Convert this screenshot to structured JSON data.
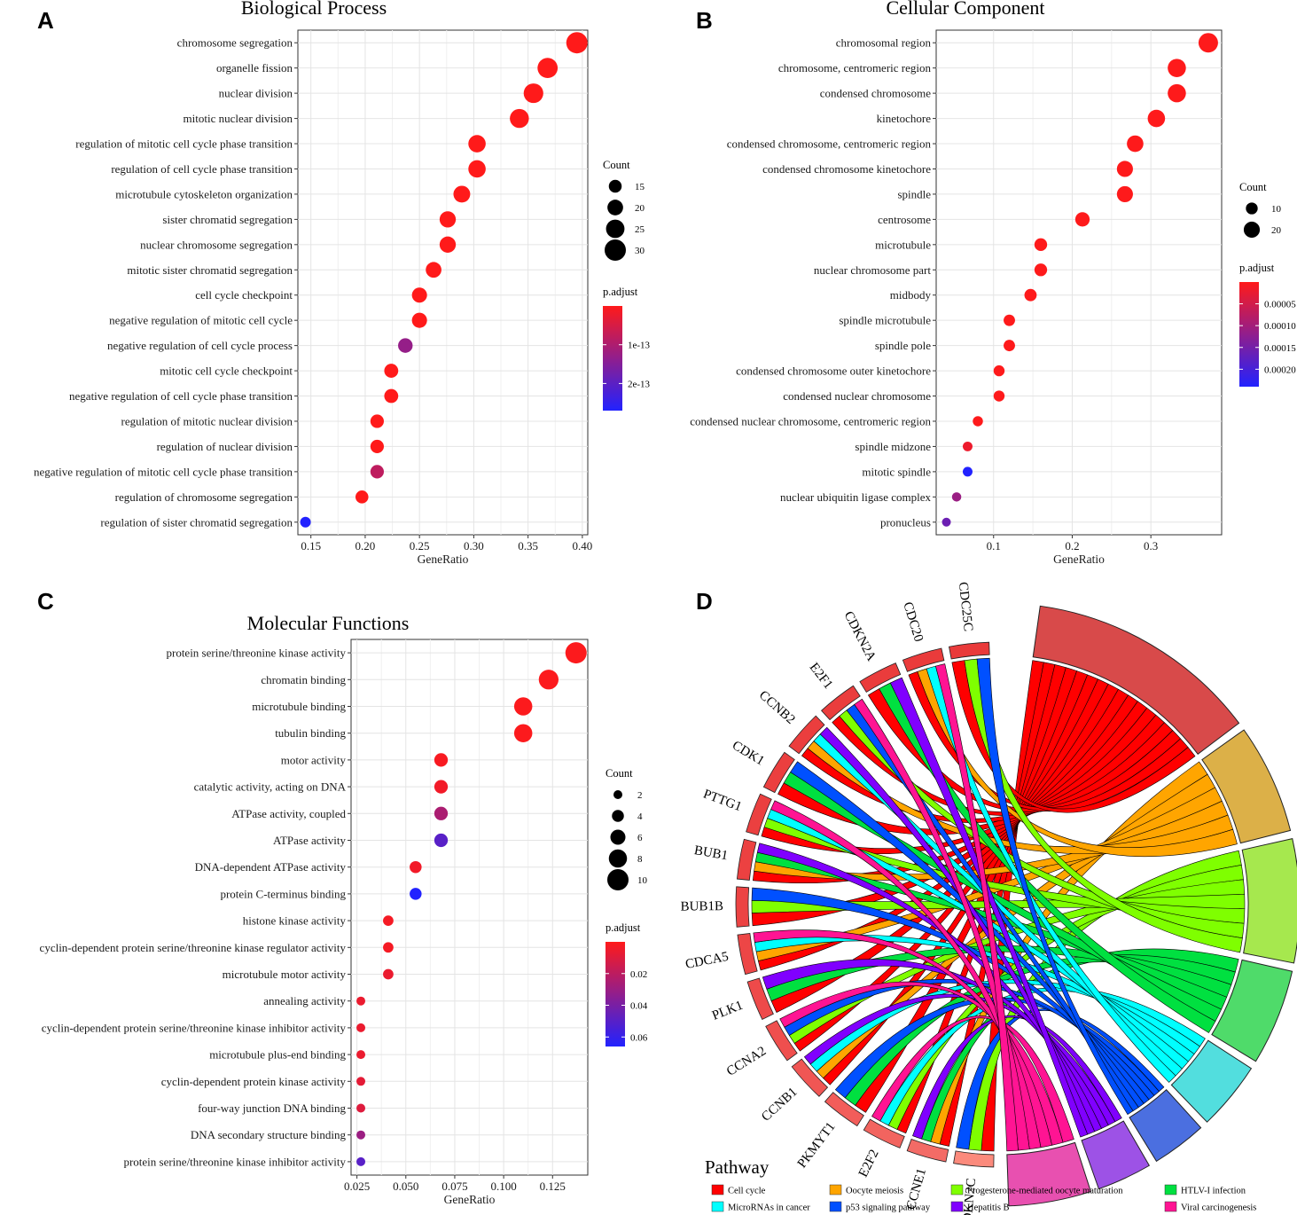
{
  "figure": {
    "panels": [
      "A",
      "B",
      "C",
      "D"
    ]
  },
  "chart_data": [
    {
      "panel": "A",
      "type": "scatter",
      "title": "Biological Process",
      "xlabel": "GeneRatio",
      "ylabel": "",
      "xlim": [
        0.138,
        0.405
      ],
      "xticks": [
        0.15,
        0.2,
        0.25,
        0.3,
        0.35,
        0.4
      ],
      "xtick_labels": [
        "0.15",
        "0.20",
        "0.25",
        "0.30",
        "0.35",
        "0.40"
      ],
      "categories": [
        "chromosome segregation",
        "organelle fission",
        "nuclear division",
        "mitotic nuclear division",
        "regulation of mitotic cell cycle phase transition",
        "regulation of cell cycle phase transition",
        "microtubule cytoskeleton organization",
        "sister chromatid segregation",
        "nuclear chromosome segregation",
        "mitotic sister chromatid segregation",
        "cell cycle checkpoint",
        "negative regulation of mitotic cell cycle",
        "negative regulation of cell cycle process",
        "mitotic cell cycle checkpoint",
        "negative regulation of cell cycle phase transition",
        "regulation of mitotic nuclear division",
        "regulation of nuclear division",
        "negative regulation of mitotic cell cycle phase transition",
        "regulation of chromosome segregation",
        "regulation of sister chromatid segregation"
      ],
      "gene_ratio": [
        0.395,
        0.368,
        0.355,
        0.342,
        0.303,
        0.303,
        0.289,
        0.276,
        0.276,
        0.263,
        0.25,
        0.25,
        0.237,
        0.224,
        0.224,
        0.211,
        0.211,
        0.211,
        0.197,
        0.145
      ],
      "count": [
        30,
        28,
        27,
        26,
        23,
        23,
        22,
        21,
        21,
        20,
        19,
        19,
        18,
        17,
        17,
        16,
        16,
        16,
        15,
        11
      ],
      "p_adjust": [
        1e-16,
        1e-16,
        1e-16,
        1e-16,
        1e-16,
        1e-16,
        1e-16,
        1e-16,
        1e-16,
        1e-16,
        1e-16,
        1e-16,
        1.3e-13,
        1e-16,
        1e-16,
        1e-16,
        1e-16,
        8e-14,
        1e-16,
        2.7e-13
      ],
      "legend": {
        "size_title": "Count",
        "size_values": [
          15,
          20,
          25,
          30
        ],
        "size_labels": [
          "15",
          "20",
          "25",
          "30"
        ],
        "color_title": "p.adjust",
        "color_ticks": [
          1e-13,
          2e-13
        ],
        "color_labels": [
          "1e-13",
          "2e-13"
        ],
        "color_range": [
          0,
          2.7e-13
        ],
        "color_low": "#ff1a1a",
        "color_high": "#2222ff"
      }
    },
    {
      "panel": "B",
      "type": "scatter",
      "title": "Cellular Component",
      "xlabel": "GeneRatio",
      "ylabel": "",
      "xlim": [
        0.027,
        0.39
      ],
      "xticks": [
        0.1,
        0.2,
        0.3
      ],
      "xtick_labels": [
        "0.1",
        "0.2",
        "0.3"
      ],
      "categories": [
        "chromosomal region",
        "chromosome, centromeric region",
        "condensed chromosome",
        "kinetochore",
        "condensed chromosome, centromeric region",
        "condensed chromosome kinetochore",
        "spindle",
        "centrosome",
        "microtubule",
        "nuclear chromosome part",
        "midbody",
        "spindle microtubule",
        "spindle pole",
        "condensed chromosome outer kinetochore",
        "condensed nuclear chromosome",
        "condensed nuclear chromosome, centromeric region",
        "spindle midzone",
        "mitotic spindle",
        "nuclear ubiquitin ligase complex",
        "pronucleus"
      ],
      "gene_ratio": [
        0.373,
        0.333,
        0.333,
        0.307,
        0.28,
        0.267,
        0.267,
        0.213,
        0.16,
        0.16,
        0.147,
        0.12,
        0.12,
        0.107,
        0.107,
        0.08,
        0.067,
        0.067,
        0.053,
        0.04
      ],
      "count": [
        28,
        25,
        25,
        23,
        21,
        20,
        20,
        16,
        12,
        12,
        11,
        9,
        9,
        8,
        8,
        6,
        5,
        5,
        4,
        3
      ],
      "p_adjust": [
        1e-06,
        1e-06,
        1e-06,
        1e-06,
        1e-06,
        1e-06,
        1e-06,
        1e-06,
        1e-06,
        1e-06,
        1e-06,
        1e-06,
        1e-06,
        1e-06,
        1e-06,
        1e-06,
        2e-05,
        0.00024,
        0.00011,
        0.00016
      ],
      "legend": {
        "size_title": "Count",
        "size_values": [
          10,
          20
        ],
        "size_labels": [
          "10",
          "20"
        ],
        "color_title": "p.adjust",
        "color_ticks": [
          5e-05,
          0.0001,
          0.00015,
          0.0002
        ],
        "color_labels": [
          "0.00005",
          "0.00010",
          "0.00015",
          "0.00020"
        ],
        "color_range": [
          0,
          0.00024
        ],
        "color_low": "#ff1a1a",
        "color_high": "#2222ff"
      }
    },
    {
      "panel": "C",
      "type": "scatter",
      "title": "Molecular Functions",
      "xlabel": "GeneRatio",
      "ylabel": "",
      "xlim": [
        0.022,
        0.143
      ],
      "xticks": [
        0.025,
        0.05,
        0.075,
        0.1,
        0.125
      ],
      "xtick_labels": [
        "0.025",
        "0.050",
        "0.075",
        "0.100",
        "0.125"
      ],
      "categories": [
        "protein serine/threonine kinase activity",
        "chromatin binding",
        "microtubule binding",
        "tubulin binding",
        "motor activity",
        "catalytic activity, acting on DNA",
        "ATPase activity, coupled",
        "ATPase activity",
        "DNA-dependent ATPase activity",
        "protein C-terminus binding",
        "histone kinase activity",
        "cyclin-dependent protein serine/threonine kinase regulator activity",
        "microtubule motor activity",
        "annealing activity",
        "cyclin-dependent protein serine/threonine kinase inhibitor activity",
        "microtubule plus-end binding",
        "cyclin-dependent protein kinase activity",
        "four-way junction DNA binding",
        "DNA secondary structure binding",
        "protein serine/threonine kinase inhibitor activity"
      ],
      "gene_ratio": [
        0.137,
        0.123,
        0.11,
        0.11,
        0.068,
        0.068,
        0.068,
        0.068,
        0.055,
        0.055,
        0.041,
        0.041,
        0.041,
        0.027,
        0.027,
        0.027,
        0.027,
        0.027,
        0.027,
        0.027
      ],
      "count": [
        10,
        9,
        8,
        8,
        5,
        5,
        5,
        5,
        4,
        4,
        3,
        3,
        3,
        2,
        2,
        2,
        2,
        2,
        2,
        2
      ],
      "p_adjust": [
        0.001,
        0.001,
        0.001,
        0.001,
        0.002,
        0.004,
        0.025,
        0.05,
        0.004,
        0.066,
        0.003,
        0.003,
        0.006,
        0.006,
        0.006,
        0.006,
        0.008,
        0.01,
        0.03,
        0.05
      ],
      "legend": {
        "size_title": "Count",
        "size_values": [
          2,
          4,
          6,
          8,
          10
        ],
        "size_labels": [
          "2",
          "4",
          "6",
          "8",
          "10"
        ],
        "color_title": "p.adjust",
        "color_ticks": [
          0.02,
          0.04,
          0.06
        ],
        "color_labels": [
          "0.02",
          "0.04",
          "0.06"
        ],
        "color_range": [
          0,
          0.066
        ],
        "color_low": "#ff1a1a",
        "color_high": "#2222ff"
      }
    },
    {
      "panel": "D",
      "type": "chord",
      "title": "",
      "genes": [
        "CDKN2C",
        "CCNE1",
        "E2F2",
        "PKMYT1",
        "CCNB1",
        "CCNA2",
        "PLK1",
        "CDCA5",
        "BUB1B",
        "BUB1",
        "PTTG1",
        "CDK1",
        "CCNB2",
        "E2F1",
        "CDKN2A",
        "CDC20",
        "CDC25C"
      ],
      "gene_colors": [
        "#fb8a7c",
        "#f36b66",
        "#f2645f",
        "#f25d5a",
        "#f05654",
        "#ef4f4e",
        "#ee4a4a",
        "#ed4646",
        "#ec4343",
        "#ec4141",
        "#eb4040",
        "#eb3f3f",
        "#eb3e3e",
        "#ea3d3d",
        "#ea3c3c",
        "#ea3b3b",
        "#e93a3a"
      ],
      "pathways": [
        {
          "name": "Cell cycle",
          "color": "#ff0000",
          "block_color": "#d84a4a",
          "count": 17
        },
        {
          "name": "Oocyte meiosis",
          "color": "#ffa500",
          "block_color": "#dcb048",
          "count": 8
        },
        {
          "name": "Progesterone-mediated oocyte maturation",
          "color": "#7fff00",
          "block_color": "#a6e84e",
          "count": 9
        },
        {
          "name": "HTLV-I infection",
          "color": "#00e040",
          "block_color": "#4fdb6a",
          "count": 7
        },
        {
          "name": "MicroRNAs in cancer",
          "color": "#00ffff",
          "block_color": "#52dede",
          "count": 5
        },
        {
          "name": "p53 signaling pathway",
          "color": "#0050ff",
          "block_color": "#4b6fe0",
          "count": 4
        },
        {
          "name": "Hepatitis B",
          "color": "#8000ff",
          "block_color": "#9d52e6",
          "count": 4
        },
        {
          "name": "Viral carcinogenesis",
          "color": "#ff1493",
          "block_color": "#e850b0",
          "count": 6
        }
      ],
      "legend_title": "Pathway",
      "legend_order": [
        "Cell cycle",
        "Oocyte meiosis",
        "Progesterone-mediated oocyte maturation",
        "HTLV-I infection",
        "MicroRNAs in cancer",
        "p53 signaling pathway",
        "Hepatitis B",
        "Viral carcinogenesis"
      ]
    }
  ]
}
